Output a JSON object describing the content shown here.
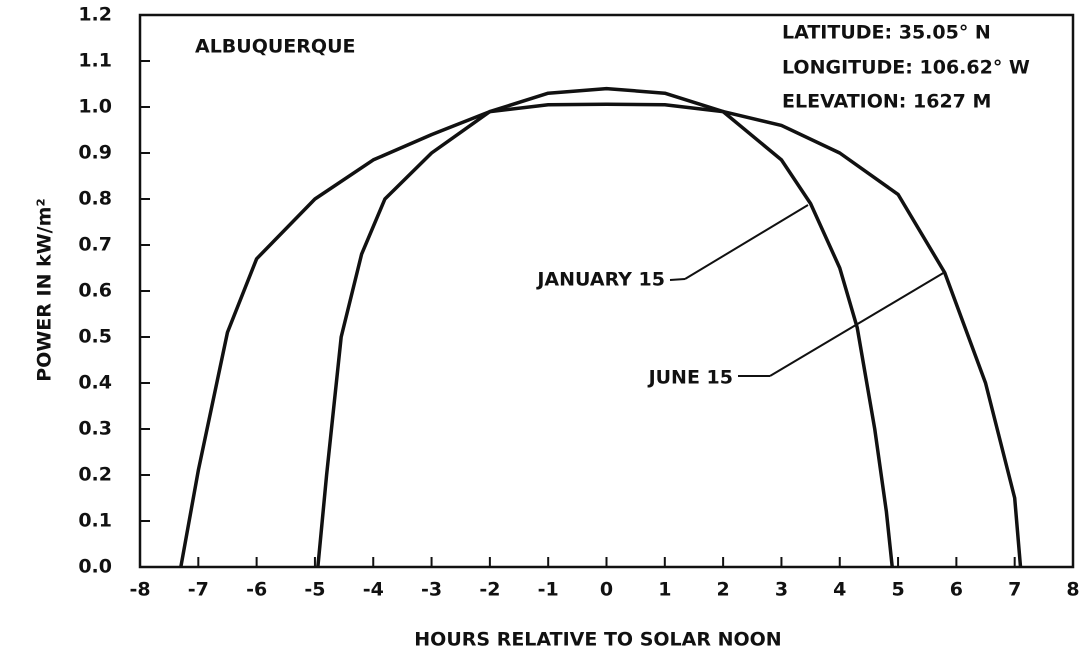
{
  "chart_data": {
    "type": "line",
    "ylabel": "POWER IN kW/m²",
    "xlabel": "HOURS RELATIVE TO SOLAR NOON",
    "annotations": [
      "ALBUQUERQUE",
      "LATITUDE: 35.05° N",
      "LONGITUDE: 106.62° W",
      "ELEVATION: 1627 M"
    ],
    "xlim": [
      -8,
      8
    ],
    "ylim": [
      0,
      1.2
    ],
    "xticks": [
      -8,
      -7,
      -6,
      -5,
      -4,
      -3,
      -2,
      -1,
      0,
      1,
      2,
      3,
      4,
      5,
      6,
      7,
      8
    ],
    "yticks": [
      {
        "value": 0,
        "label": "0.0"
      },
      0.1,
      0.2,
      0.3,
      0.4,
      0.5,
      0.6,
      0.7,
      0.8,
      0.9,
      {
        "value": 1,
        "label": "1.0"
      },
      1.1,
      1.2
    ],
    "series": [
      {
        "name": "JANUARY 15",
        "color": "#111111",
        "x": [
          -4.95,
          -4.8,
          -4.55,
          -4.2,
          -3.8,
          -3,
          -2,
          -1,
          0,
          1,
          2,
          3,
          3.5,
          4,
          4.3,
          4.6,
          4.8,
          4.9
        ],
        "values": [
          0,
          0.2,
          0.5,
          0.68,
          0.8,
          0.9,
          0.99,
          1.03,
          1.04,
          1.03,
          0.99,
          0.885,
          0.79,
          0.65,
          0.52,
          0.3,
          0.12,
          0
        ]
      },
      {
        "name": "JUNE 15",
        "color": "#111111",
        "x": [
          -7.3,
          -7,
          -6.5,
          -6,
          -5,
          -4,
          -3,
          -2,
          -1,
          0,
          1,
          2,
          3,
          4,
          5,
          5.8,
          6.5,
          7,
          7.1
        ],
        "values": [
          0,
          0.21,
          0.51,
          0.67,
          0.8,
          0.885,
          0.94,
          0.99,
          1.005,
          1.006,
          1.005,
          0.99,
          0.96,
          0.9,
          0.81,
          0.64,
          0.4,
          0.15,
          0
        ]
      }
    ]
  }
}
